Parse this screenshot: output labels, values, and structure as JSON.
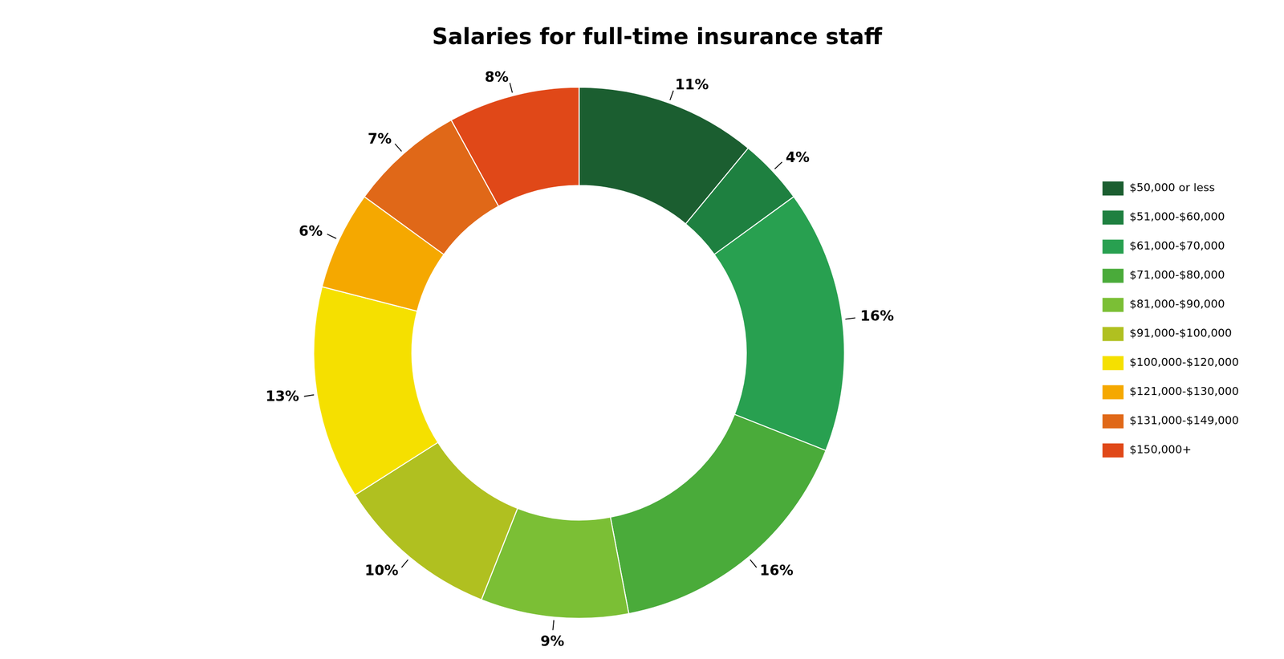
{
  "chart_data": {
    "type": "doughnut",
    "title": "Salaries for full-time insurance staff",
    "categories": [
      "$50,000 or less",
      "$51,000-$60,000",
      "$61,000-$70,000",
      "$71,000-$80,000",
      "$81,000-$90,000",
      "$91,000-$100,000",
      "$100,000-$120,000",
      "$121,000-$130,000",
      "$131,000-$149,000",
      "$150,000+"
    ],
    "values": [
      11,
      4,
      16,
      16,
      9,
      10,
      13,
      6,
      7,
      8
    ],
    "value_labels": [
      "11%",
      "4%",
      "16%",
      "16%",
      "9%",
      "10%",
      "13%",
      "6%",
      "7%",
      "8%"
    ],
    "data_labels": true,
    "colors": [
      "#1b5e30",
      "#1e8040",
      "#28a050",
      "#4aab3a",
      "#7bbf35",
      "#b0c020",
      "#f5e000",
      "#f5a800",
      "#e06818",
      "#e04818"
    ],
    "legend": "right"
  }
}
